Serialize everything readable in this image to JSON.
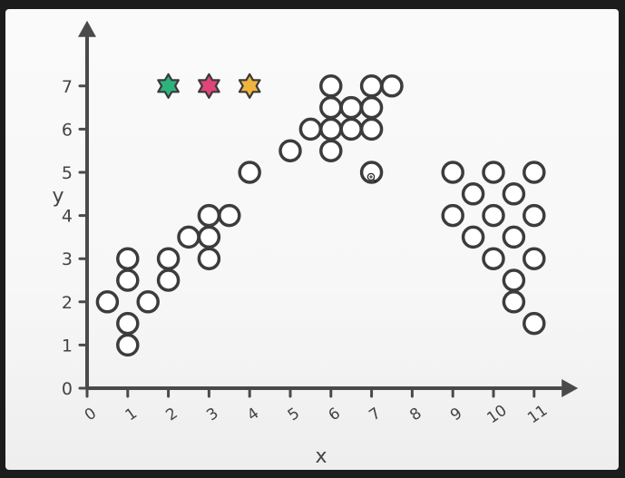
{
  "chart_data": {
    "type": "scatter",
    "title": "",
    "xlabel": "x",
    "ylabel": "y",
    "xlim": [
      0,
      11.5
    ],
    "ylim": [
      0,
      7.8
    ],
    "x_ticks": [
      "0",
      "1",
      "2",
      "3",
      "4",
      "5",
      "6",
      "7",
      "8",
      "9",
      "10",
      "11"
    ],
    "y_ticks": [
      "0",
      "1",
      "2",
      "3",
      "4",
      "5",
      "6",
      "7"
    ],
    "grid": false,
    "legend": "none",
    "colors": {
      "axis": "#4a4a4a",
      "marker_stroke": "#3c3c3c",
      "marker_fill": "#ffffff",
      "star_green": "#2fb37e",
      "star_pink": "#e0457a",
      "star_yellow": "#f0b43c"
    },
    "series": [
      {
        "marker": "circle",
        "points": [
          [
            0.5,
            2
          ],
          [
            1,
            1
          ],
          [
            1,
            1.5
          ],
          [
            1,
            2.5
          ],
          [
            1,
            3
          ],
          [
            1.5,
            2
          ],
          [
            2,
            2.5
          ],
          [
            2,
            3
          ],
          [
            2.5,
            3.5
          ],
          [
            3,
            3
          ],
          [
            3,
            3.5
          ],
          [
            3,
            4
          ],
          [
            3.5,
            4
          ],
          [
            4,
            5
          ],
          [
            5,
            5.5
          ],
          [
            5.5,
            6
          ],
          [
            6,
            5.5
          ],
          [
            6,
            6
          ],
          [
            6,
            6.5
          ],
          [
            6,
            7
          ],
          [
            6.5,
            6
          ],
          [
            6.5,
            6.5
          ],
          [
            7,
            6
          ],
          [
            7,
            6.5
          ],
          [
            7,
            7
          ],
          [
            7.5,
            7
          ],
          [
            7,
            5
          ],
          [
            9,
            5
          ],
          [
            9,
            4
          ],
          [
            9.5,
            4.5
          ],
          [
            9.5,
            3.5
          ],
          [
            10,
            5
          ],
          [
            10,
            4
          ],
          [
            10,
            3
          ],
          [
            10.5,
            4.5
          ],
          [
            10.5,
            3.5
          ],
          [
            10.5,
            2.5
          ],
          [
            10.5,
            2
          ],
          [
            11,
            5
          ],
          [
            11,
            4
          ],
          [
            11,
            3
          ],
          [
            11,
            1.5
          ]
        ]
      },
      {
        "marker": "star",
        "points": [
          {
            "x": 2,
            "y": 7,
            "color": "#2fb37e"
          },
          {
            "x": 3,
            "y": 7,
            "color": "#e0457a"
          },
          {
            "x": 4,
            "y": 7,
            "color": "#f0b43c"
          }
        ]
      }
    ]
  },
  "cursor": {
    "icon": "zoom-cursor-icon"
  }
}
